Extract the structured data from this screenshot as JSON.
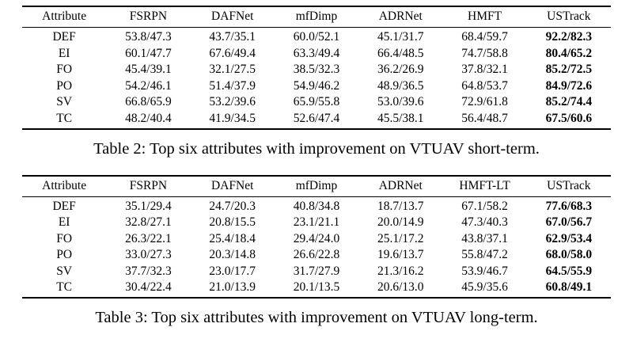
{
  "page": {
    "background": "#ffffff",
    "text_color": "#000000"
  },
  "tables": [
    {
      "name": "vtuav-short-term-attributes",
      "columns": [
        "Attribute",
        "FSRPN",
        "DAFNet",
        "mfDimp",
        "ADRNet",
        "HMFT",
        "USTrack"
      ],
      "bold_column": "USTrack",
      "rows": [
        [
          "DEF",
          "53.8/47.3",
          "43.7/35.1",
          "60.0/52.1",
          "45.1/31.7",
          "68.4/59.7",
          "92.2/82.3"
        ],
        [
          "EI",
          "60.1/47.7",
          "67.6/49.4",
          "63.3/49.4",
          "66.4/48.5",
          "74.7/58.8",
          "80.4/65.2"
        ],
        [
          "FO",
          "45.4/39.1",
          "32.1/27.5",
          "38.5/32.3",
          "36.2/26.9",
          "37.8/32.1",
          "85.2/72.5"
        ],
        [
          "PO",
          "54.2/46.1",
          "51.4/37.9",
          "54.9/46.2",
          "48.9/36.5",
          "64.8/53.7",
          "84.9/72.6"
        ],
        [
          "SV",
          "66.8/65.9",
          "53.2/39.6",
          "65.9/55.8",
          "53.0/39.6",
          "72.9/61.8",
          "85.2/74.4"
        ],
        [
          "TC",
          "48.2/40.4",
          "41.9/34.5",
          "52.6/47.4",
          "45.5/38.1",
          "56.4/48.7",
          "67.5/60.6"
        ]
      ],
      "caption": "Table 2: Top six attributes with improvement on VTUAV short-term."
    },
    {
      "name": "vtuav-long-term-attributes",
      "columns": [
        "Attribute",
        "FSRPN",
        "DAFNet",
        "mfDimp",
        "ADRNet",
        "HMFT-LT",
        "USTrack"
      ],
      "bold_column": "USTrack",
      "rows": [
        [
          "DEF",
          "35.1/29.4",
          "24.7/20.3",
          "40.8/34.8",
          "18.7/13.7",
          "67.1/58.2",
          "77.6/68.3"
        ],
        [
          "EI",
          "32.8/27.1",
          "20.8/15.5",
          "23.1/21.1",
          "20.0/14.9",
          "47.3/40.3",
          "67.0/56.7"
        ],
        [
          "FO",
          "26.3/22.1",
          "25.4/18.4",
          "29.4/24.0",
          "25.1/17.2",
          "43.8/37.1",
          "62.9/53.4"
        ],
        [
          "PO",
          "33.0/27.3",
          "20.3/14.8",
          "26.6/22.8",
          "19.6/13.7",
          "55.8/47.2",
          "68.0/58.0"
        ],
        [
          "SV",
          "37.7/32.3",
          "23.0/17.7",
          "31.7/27.9",
          "21.3/16.2",
          "53.9/46.7",
          "64.5/55.9"
        ],
        [
          "TC",
          "30.4/22.4",
          "21.0/13.9",
          "20.1/13.5",
          "20.6/13.0",
          "45.9/35.6",
          "60.8/49.1"
        ]
      ],
      "caption": "Table 3: Top six attributes with improvement on VTUAV long-term."
    }
  ]
}
